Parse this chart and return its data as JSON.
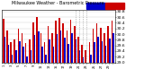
{
  "title": "Milwaukee Weather - Barometric Pressure",
  "subtitle": "Daily High/Low",
  "background_color": "#ffffff",
  "ylim": [
    29.0,
    30.85
  ],
  "yticks": [
    29.0,
    29.2,
    29.4,
    29.6,
    29.8,
    30.0,
    30.2,
    30.4,
    30.6,
    30.8
  ],
  "high_color": "#cc0000",
  "low_color": "#0000cc",
  "dotted_line_indices": [
    19,
    20,
    21,
    22
  ],
  "highs": [
    30.55,
    30.12,
    29.72,
    29.82,
    30.18,
    30.05,
    29.68,
    29.82,
    30.42,
    30.62,
    30.05,
    29.72,
    30.28,
    30.05,
    30.48,
    30.58,
    30.38,
    30.12,
    30.52,
    30.3,
    29.92,
    29.62,
    29.42,
    29.72,
    30.18,
    30.38,
    30.22,
    30.05,
    30.28,
    30.48
  ],
  "lows": [
    29.92,
    29.62,
    29.28,
    29.42,
    29.75,
    29.55,
    29.22,
    29.42,
    29.98,
    30.1,
    29.55,
    29.28,
    29.82,
    29.55,
    30.0,
    30.12,
    29.88,
    29.65,
    30.02,
    29.82,
    29.42,
    29.18,
    28.98,
    29.28,
    29.72,
    29.92,
    29.75,
    29.58,
    29.85,
    30.02
  ],
  "xlabels": [
    "1",
    "",
    "3",
    "",
    "5",
    "",
    "7",
    "",
    "9",
    "",
    "11",
    "",
    "13",
    "",
    "15",
    "",
    "17",
    "",
    "19",
    "",
    "21",
    "",
    "23",
    "",
    "25",
    "",
    "27",
    "",
    "29",
    ""
  ],
  "n": 30
}
